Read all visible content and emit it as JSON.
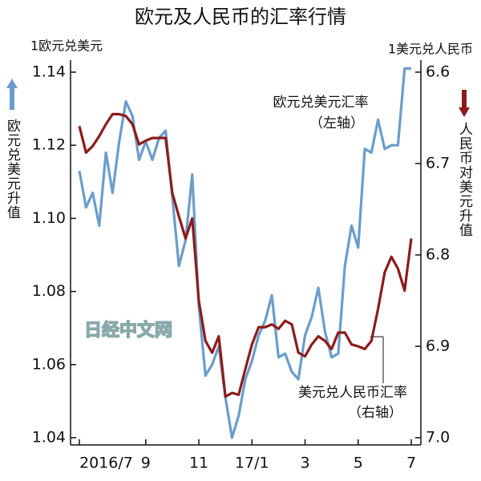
{
  "chart_data": {
    "type": "line",
    "title": "欧元及人民币的汇率行情",
    "y_axis_unit": "1欧元兑美元",
    "y2_axis_unit": "1美元兑人民币",
    "y_axis_label": "欧元兑美元升值",
    "y2_axis_label": "人民币对美元升值",
    "watermark": "日经中文网",
    "categories": [
      "2016/7",
      null,
      null,
      null,
      null,
      null,
      null,
      null,
      null,
      null,
      "9",
      null,
      null,
      null,
      null,
      null,
      null,
      null,
      "11",
      null,
      null,
      null,
      null,
      null,
      null,
      null,
      "17/1",
      null,
      null,
      null,
      null,
      null,
      null,
      null,
      "3",
      null,
      null,
      null,
      null,
      null,
      null,
      null,
      "5",
      null,
      null,
      null,
      null,
      null,
      null,
      null,
      "7"
    ],
    "series": [
      {
        "name": "欧元兑美元汇率",
        "axis_note": "（左轴）",
        "color": "#6b9dcb",
        "axis": "y",
        "values": [
          1.113,
          1.103,
          1.107,
          1.098,
          1.118,
          1.107,
          1.121,
          1.132,
          1.128,
          1.116,
          1.121,
          1.116,
          1.122,
          1.124,
          1.106,
          1.087,
          1.094,
          1.112,
          1.076,
          1.057,
          1.06,
          1.065,
          1.051,
          1.04,
          1.046,
          1.056,
          1.061,
          1.068,
          1.072,
          1.079,
          1.062,
          1.063,
          1.058,
          1.056,
          1.068,
          1.073,
          1.081,
          1.069,
          1.062,
          1.063,
          1.087,
          1.098,
          1.092,
          1.119,
          1.118,
          1.127,
          1.119,
          1.12,
          1.12,
          1.141,
          1.141
        ]
      },
      {
        "name": "美元兑人民币汇率",
        "axis_note": "（右轴）",
        "color": "#8c1c1c",
        "axis": "y2",
        "values": [
          6.659,
          6.688,
          6.681,
          6.67,
          6.657,
          6.646,
          6.646,
          6.648,
          6.657,
          6.679,
          6.675,
          6.672,
          6.672,
          6.672,
          6.732,
          6.758,
          6.782,
          6.76,
          6.85,
          6.894,
          6.907,
          6.889,
          6.955,
          6.951,
          6.953,
          6.925,
          6.898,
          6.879,
          6.879,
          6.876,
          6.881,
          6.872,
          6.876,
          6.907,
          6.911,
          6.898,
          6.889,
          6.894,
          6.903,
          6.885,
          6.885,
          6.898,
          6.9,
          6.903,
          6.894,
          6.859,
          6.819,
          6.802,
          6.815,
          6.839,
          6.782
        ]
      }
    ],
    "ylim": [
      1.04,
      1.14
    ],
    "yticks": [
      {
        "value": 1.04,
        "label": "1.04"
      },
      {
        "value": 1.06,
        "label": "1.06"
      },
      {
        "value": 1.08,
        "label": "1.08"
      },
      {
        "value": 1.1,
        "label": "1.10"
      },
      {
        "value": 1.12,
        "label": "1.12"
      },
      {
        "value": 1.14,
        "label": "1.14"
      }
    ],
    "y2lim": [
      6.6,
      7.0
    ],
    "y2_inverted": true,
    "y2ticks": [
      6.6,
      6.7,
      6.8,
      6.9,
      {
        "value": 7.0,
        "label": "7.0"
      }
    ],
    "grid": false
  }
}
